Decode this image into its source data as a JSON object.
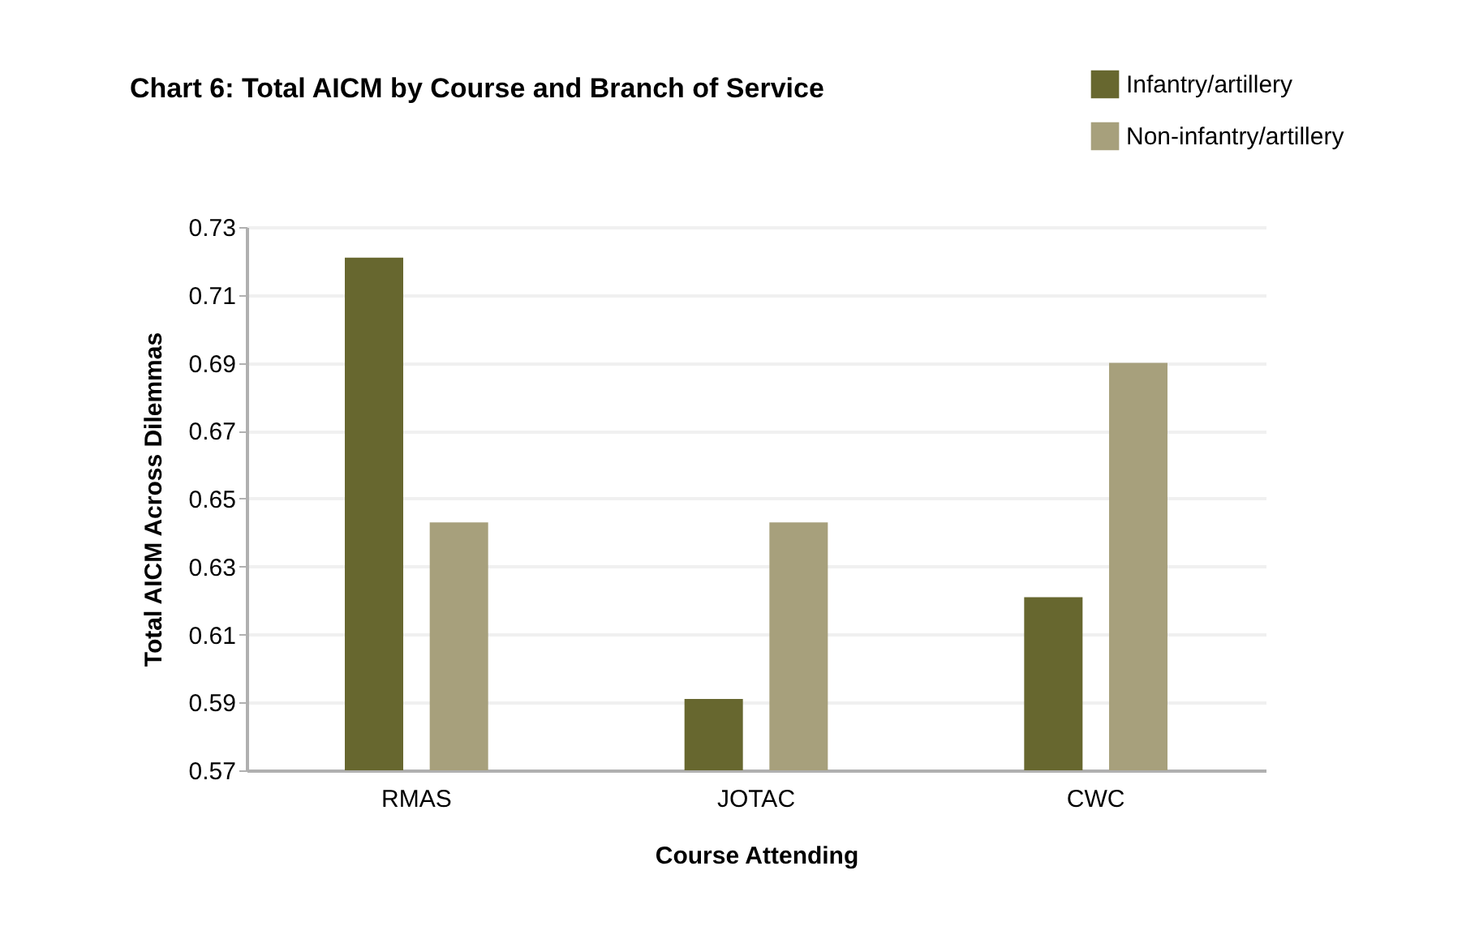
{
  "chart_data": {
    "type": "bar",
    "title": "Chart 6: Total AICM by Course and Branch of Service",
    "xlabel": "Course Attending",
    "ylabel": "Total AICM Across Dilemmas",
    "categories": [
      "RMAS",
      "JOTAC",
      "CWC"
    ],
    "series": [
      {
        "name": "Infantry/artillery",
        "color": "#67672f",
        "values": [
          0.721,
          0.591,
          0.621
        ]
      },
      {
        "name": "Non-infantry/artillery",
        "color": "#a7a07c",
        "values": [
          0.643,
          0.643,
          0.69
        ]
      }
    ],
    "ylim": [
      0.57,
      0.73
    ],
    "yticks": [
      0.57,
      0.59,
      0.61,
      0.63,
      0.65,
      0.67,
      0.69,
      0.71,
      0.73
    ],
    "grid": "y",
    "legend": "top right"
  }
}
